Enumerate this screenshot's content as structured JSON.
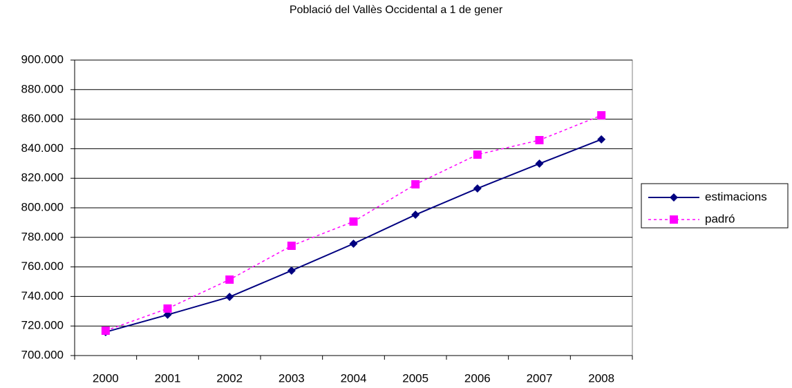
{
  "chart_data": {
    "type": "line",
    "title": "Població del Vallès Occidental a 1 de gener",
    "categories": [
      "2000",
      "2001",
      "2002",
      "2003",
      "2004",
      "2005",
      "2006",
      "2007",
      "2008"
    ],
    "series": [
      {
        "name": "estimacions",
        "color": "#000080",
        "marker": "diamond",
        "dashed": false,
        "values": [
          715900,
          727600,
          739700,
          757500,
          775700,
          795300,
          813100,
          829900,
          846300
        ]
      },
      {
        "name": "padró",
        "color": "#ff00ff",
        "marker": "square",
        "dashed": true,
        "values": [
          716800,
          731800,
          751400,
          774300,
          790700,
          815900,
          836000,
          845800,
          862600
        ]
      }
    ],
    "ylim": [
      700000,
      900000
    ],
    "yticks": [
      {
        "value": 700000,
        "label": "700.000"
      },
      {
        "value": 720000,
        "label": "720.000"
      },
      {
        "value": 740000,
        "label": "740.000"
      },
      {
        "value": 760000,
        "label": "760.000"
      },
      {
        "value": 780000,
        "label": "780.000"
      },
      {
        "value": 800000,
        "label": "800.000"
      },
      {
        "value": 820000,
        "label": "820.000"
      },
      {
        "value": 840000,
        "label": "840.000"
      },
      {
        "value": 860000,
        "label": "860.000"
      },
      {
        "value": 880000,
        "label": "880.000"
      },
      {
        "value": 900000,
        "label": "900.000"
      }
    ],
    "grid": true,
    "legend": "right"
  }
}
